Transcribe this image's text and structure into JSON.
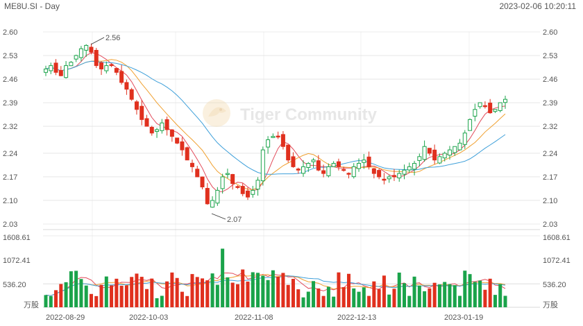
{
  "header": {
    "symbol_label": "ME8U.SI - Day",
    "timestamp": "2023-02-06 10:20:11"
  },
  "watermark": {
    "text": "Tiger Community",
    "icon": "tiger-logo-icon"
  },
  "price_axis": {
    "ticks": [
      "2.60",
      "2.53",
      "2.46",
      "2.39",
      "2.32",
      "2.24",
      "2.17",
      "2.10",
      "2.03"
    ]
  },
  "volume_axis": {
    "ticks": [
      "1608.61",
      "1072.41",
      "536.20"
    ],
    "unit": "万股"
  },
  "date_axis": {
    "labels": [
      "2022-08-29",
      "2022-10-03",
      "2022-11-08",
      "2022-12-13",
      "2023-01-19"
    ]
  },
  "annotations": {
    "high": "2.56",
    "low": "2.07"
  },
  "colors": {
    "up": "#1aa34a",
    "down": "#e0301e",
    "ma5": "#e24a5a",
    "ma10": "#f0a030",
    "ma20": "#3d9fd9",
    "grid": "#d8d8d8"
  },
  "chart_data": {
    "type": "candlestick",
    "series_count": 118,
    "ohlc_keypoints": {
      "close_path": [
        2.49,
        2.5,
        2.48,
        2.47,
        2.5,
        2.51,
        2.53,
        2.55,
        2.56,
        2.54,
        2.5,
        2.49,
        2.5,
        2.5,
        2.48,
        2.45,
        2.43,
        2.4,
        2.37,
        2.34,
        2.32,
        2.3,
        2.31,
        2.33,
        2.31,
        2.29,
        2.27,
        2.25,
        2.22,
        2.2,
        2.17,
        2.14,
        2.09,
        2.1,
        2.13,
        2.17,
        2.18,
        2.15,
        2.14,
        2.12,
        2.11,
        2.13,
        2.16,
        2.25,
        2.28,
        2.29,
        2.29,
        2.26,
        2.22,
        2.2,
        2.19,
        2.2,
        2.21,
        2.22,
        2.19,
        2.18,
        2.2,
        2.21,
        2.2,
        2.19,
        2.18,
        2.2,
        2.21,
        2.22,
        2.2,
        2.18,
        2.17,
        2.16,
        2.17,
        2.17,
        2.18,
        2.19,
        2.2,
        2.21,
        2.23,
        2.26,
        2.24,
        2.22,
        2.23,
        2.24,
        2.25,
        2.26,
        2.27,
        2.3,
        2.34,
        2.37,
        2.39,
        2.38,
        2.36,
        2.37,
        2.39,
        2.4
      ],
      "price_range": [
        2.03,
        2.6
      ]
    },
    "volume_range": [
      0,
      1608.61
    ],
    "volume_unit": "万股"
  }
}
